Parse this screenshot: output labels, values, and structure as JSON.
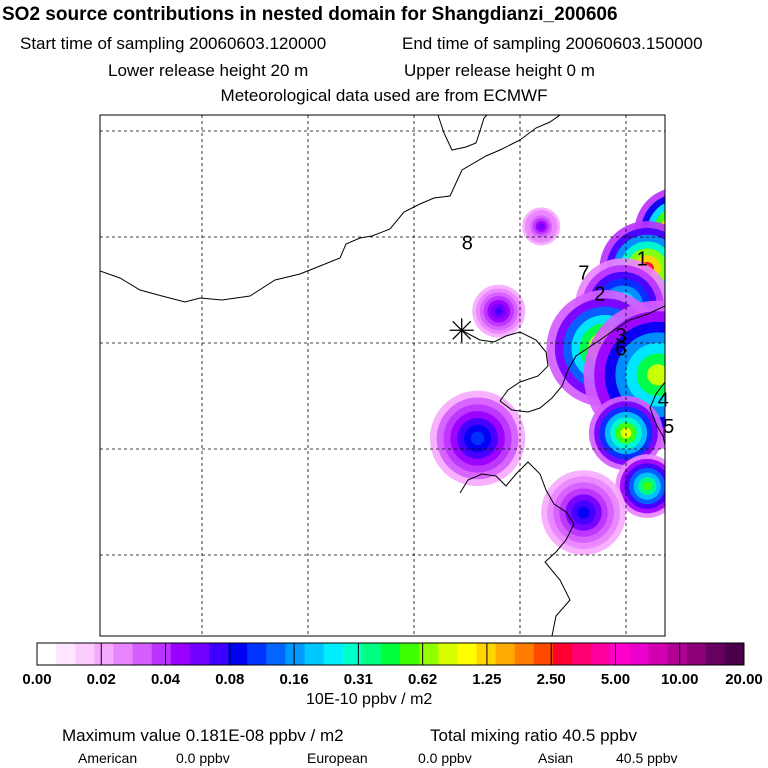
{
  "header": {
    "title": "SO2 source contributions in nested domain for Shangdianzi_200606",
    "start_time": "Start time of sampling 20060603.120000",
    "end_time": "End time of sampling 20060603.150000",
    "lower_height": "Lower release height   20 m",
    "upper_height": "Upper release height    0 m",
    "met_data": "Meteorological data used are from ECMWF"
  },
  "map": {
    "region_labels": [
      {
        "text": "8",
        "lon": 0.45,
        "lat": 0.88
      },
      {
        "text": "7",
        "lon": 1.55,
        "lat": 0.6
      },
      {
        "text": "1",
        "lon": 2.1,
        "lat": 0.73
      },
      {
        "text": "2",
        "lon": 1.7,
        "lat": 0.4
      },
      {
        "text": "3",
        "lon": 1.9,
        "lat": 0.01
      },
      {
        "text": "6",
        "lon": 1.9,
        "lat": -0.12
      },
      {
        "text": "4",
        "lon": 2.3,
        "lat": -0.6
      },
      {
        "text": "5",
        "lon": 2.35,
        "lat": -0.85
      }
    ],
    "station_marker": "star",
    "plumes": [
      {
        "lon": 2.5,
        "lat": 1.05,
        "r": 0.42,
        "peak": 0.95
      },
      {
        "lon": 2.2,
        "lat": 0.7,
        "r": 0.45,
        "peak": 0.8
      },
      {
        "lon": 1.97,
        "lat": 0.35,
        "r": 0.45,
        "peak": 0.5
      },
      {
        "lon": 1.8,
        "lat": -0.05,
        "r": 0.55,
        "peak": 0.72
      },
      {
        "lon": 2.3,
        "lat": -0.3,
        "r": 0.7,
        "peak": 0.6
      },
      {
        "lon": 3.0,
        "lat": -0.65,
        "r": 0.5,
        "peak": 0.45
      },
      {
        "lon": 2.0,
        "lat": -0.85,
        "r": 0.35,
        "peak": 0.65
      },
      {
        "lon": 3.1,
        "lat": -1.2,
        "r": 0.45,
        "peak": 0.35
      },
      {
        "lon": 2.2,
        "lat": -1.35,
        "r": 0.3,
        "peak": 0.55
      },
      {
        "lon": 0.6,
        "lat": -0.9,
        "r": 0.45,
        "peak": 0.3
      },
      {
        "lon": 0.8,
        "lat": 0.3,
        "r": 0.25,
        "peak": 0.22
      },
      {
        "lon": 1.6,
        "lat": -1.6,
        "r": 0.4,
        "peak": 0.25
      },
      {
        "lon": 4.6,
        "lat": 1.3,
        "r": 0.22,
        "peak": 0.25
      },
      {
        "lon": 5.1,
        "lat": 0.5,
        "r": 0.3,
        "peak": 0.3
      },
      {
        "lon": 5.0,
        "lat": -0.05,
        "r": 0.2,
        "peak": 0.2
      },
      {
        "lon": 3.2,
        "lat": 0.35,
        "r": 0.55,
        "peak": 0.12
      },
      {
        "lon": 1.2,
        "lat": 1.1,
        "r": 0.18,
        "peak": 0.18
      },
      {
        "lon": 3.8,
        "lat": 1.05,
        "r": 0.18,
        "peak": 0.16
      }
    ]
  },
  "legend": {
    "tick_labels": [
      "0.00",
      "0.02",
      "0.04",
      "0.08",
      "0.16",
      "0.31",
      "0.62",
      "1.25",
      "2.50",
      "5.00",
      "10.00",
      "20.00"
    ],
    "colors": [
      "#ffffff",
      "#ffe6ff",
      "#fcccff",
      "#f6aaff",
      "#e986ff",
      "#d55eff",
      "#bb33ff",
      "#9a00ff",
      "#7400ff",
      "#4000ff",
      "#0000f2",
      "#0033ff",
      "#0066ff",
      "#0099ff",
      "#00c8ff",
      "#00eeff",
      "#00ffcc",
      "#00ff80",
      "#00ff3b",
      "#3fff00",
      "#90ff00",
      "#d8ff00",
      "#ffff00",
      "#ffd500",
      "#ffaa00",
      "#ff7e00",
      "#ff4a00",
      "#ff0030",
      "#ff0070",
      "#ff00a0",
      "#ff00cc",
      "#ee00cc",
      "#d000b0",
      "#b00095",
      "#8c007a",
      "#680060",
      "#4a0048"
    ],
    "units": "10E-10 ppbv / m2"
  },
  "summary": {
    "max_label": "Maximum value  0.181E-08 ppbv / m2",
    "total_label": "Total mixing ratio      40.5 ppbv",
    "american_label": "American",
    "american_value": "0.0 ppbv",
    "european_label": "European",
    "european_value": "0.0 ppbv",
    "asian_label": "Asian",
    "asian_value": "40.5 ppbv"
  }
}
